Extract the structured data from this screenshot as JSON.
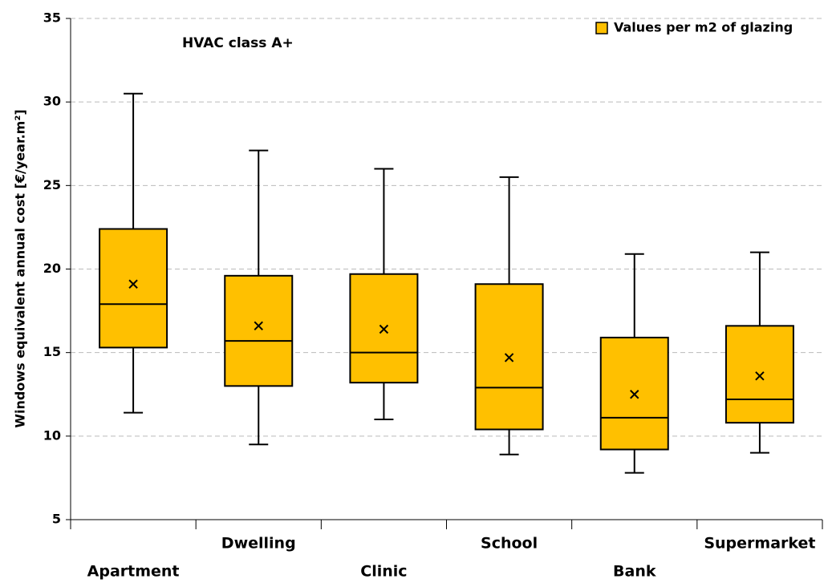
{
  "chart_data": {
    "type": "box",
    "annotation": "HVAC class A+",
    "y_label": "Windows equivalent annual cost  [€/year.m²]",
    "categories": [
      "Apartment",
      "Dwelling",
      "Clinic",
      "School",
      "Bank",
      "Supermarket"
    ],
    "series": [
      {
        "name": "Values per m2 of glazing",
        "color": "#ffc000",
        "whislo": [
          11.4,
          9.5,
          11.0,
          8.9,
          7.8,
          9.0
        ],
        "q1": [
          15.3,
          13.0,
          13.2,
          10.4,
          9.2,
          10.8
        ],
        "med": [
          17.9,
          15.7,
          15.0,
          12.9,
          11.1,
          12.2
        ],
        "q3": [
          22.4,
          19.6,
          19.7,
          19.1,
          15.9,
          16.6
        ],
        "whishi": [
          30.5,
          27.1,
          26.0,
          25.5,
          20.9,
          21.0
        ],
        "mean": [
          19.1,
          16.6,
          16.4,
          14.7,
          12.5,
          13.6
        ]
      }
    ],
    "ylim": [
      5,
      35
    ],
    "yticks": [
      5,
      10,
      15,
      20,
      25,
      30,
      35
    ],
    "grid": true,
    "legend": "top-right"
  }
}
